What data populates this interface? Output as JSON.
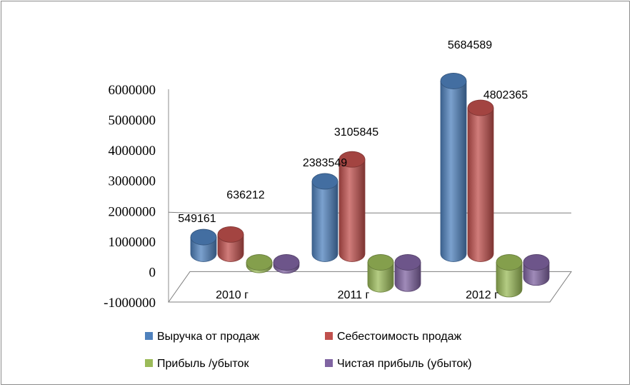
{
  "chart_data": {
    "type": "bar",
    "style": "3d-cylinder",
    "categories": [
      "2010 г",
      "2011 г",
      "2012 г"
    ],
    "series": [
      {
        "name": "Выручка от продаж",
        "color": "#4F81BD",
        "values": [
          549161,
          2383549,
          5684589
        ]
      },
      {
        "name": "Себестоимость продаж",
        "color": "#C0504D",
        "values": [
          636212,
          3105845,
          4802365
        ]
      },
      {
        "name": "Прибыль /убыток",
        "color": "#9BBB59",
        "values": [
          -87051,
          -722296,
          -882224
        ]
      },
      {
        "name": "Чистая прибыль (убыток)",
        "color": "#8064A2",
        "values": [
          -100000,
          -700000,
          -500000
        ]
      }
    ],
    "data_labels": [
      {
        "series": 0,
        "category": 0,
        "text": "549161"
      },
      {
        "series": 1,
        "category": 0,
        "text": "636212"
      },
      {
        "series": 0,
        "category": 1,
        "text": "2383549"
      },
      {
        "series": 1,
        "category": 1,
        "text": "3105845"
      },
      {
        "series": 0,
        "category": 2,
        "text": "5684589"
      },
      {
        "series": 1,
        "category": 2,
        "text": "4802365"
      }
    ],
    "y_ticks": [
      "6000000",
      "5000000",
      "4000000",
      "3000000",
      "2000000",
      "1000000",
      "0",
      "-1000000"
    ],
    "ylim": [
      -1000000,
      6000000
    ],
    "grid": false,
    "legend_position": "bottom"
  }
}
